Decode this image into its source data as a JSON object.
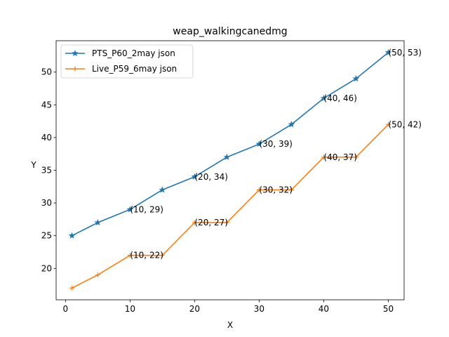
{
  "chart_data": {
    "type": "line",
    "title": "weap_walkingcanedmg",
    "xlabel": "X",
    "ylabel": "Y",
    "xlim": [
      -1.45,
      52.45
    ],
    "ylim": [
      15.2,
      54.8
    ],
    "xticks": [
      0,
      10,
      20,
      30,
      40,
      50
    ],
    "yticks": [
      20,
      25,
      30,
      35,
      40,
      45,
      50
    ],
    "grid": false,
    "legend": "top-left",
    "x": [
      1,
      5,
      10,
      15,
      20,
      25,
      30,
      35,
      40,
      45,
      50
    ],
    "series": [
      {
        "name": "PTS_P60_2may json",
        "color": "#1f77b4",
        "marker": "star",
        "values": [
          25,
          27,
          29,
          32,
          34,
          37,
          39,
          42,
          46,
          49,
          53
        ],
        "annotations": [
          {
            "x": 10,
            "y": 29,
            "text": "(10, 29)"
          },
          {
            "x": 20,
            "y": 34,
            "text": "(20, 34)"
          },
          {
            "x": 30,
            "y": 39,
            "text": "(30, 39)"
          },
          {
            "x": 40,
            "y": 46,
            "text": "(40, 46)"
          },
          {
            "x": 50,
            "y": 53,
            "text": "(50, 53)"
          }
        ]
      },
      {
        "name": "Live_P59_6may json",
        "color": "#ff7f0e",
        "marker": "plus",
        "values": [
          17,
          19,
          22,
          22,
          27,
          27,
          32,
          32,
          37,
          37,
          42
        ],
        "annotations": [
          {
            "x": 10,
            "y": 22,
            "text": "(10, 22)"
          },
          {
            "x": 20,
            "y": 27,
            "text": "(20, 27)"
          },
          {
            "x": 30,
            "y": 32,
            "text": "(30, 32)"
          },
          {
            "x": 40,
            "y": 37,
            "text": "(40, 37)"
          },
          {
            "x": 50,
            "y": 42,
            "text": "(50, 42)"
          }
        ]
      }
    ]
  }
}
